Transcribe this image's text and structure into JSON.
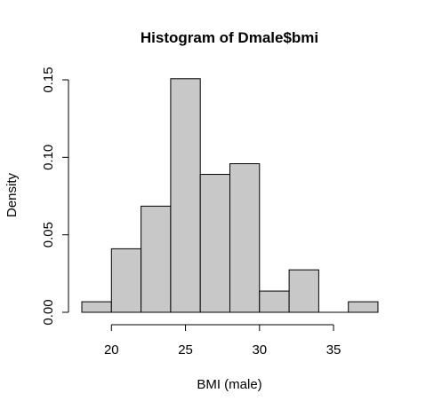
{
  "chart_data": {
    "type": "bar",
    "title": "Histogram of Dmale$bmi",
    "xlabel": "BMI (male)",
    "ylabel": "Density",
    "bins": [
      {
        "start": 18,
        "end": 20,
        "value": 0.0068
      },
      {
        "start": 20,
        "end": 22,
        "value": 0.041
      },
      {
        "start": 22,
        "end": 24,
        "value": 0.0685
      },
      {
        "start": 24,
        "end": 26,
        "value": 0.1507
      },
      {
        "start": 26,
        "end": 28,
        "value": 0.089
      },
      {
        "start": 28,
        "end": 30,
        "value": 0.0959
      },
      {
        "start": 30,
        "end": 32,
        "value": 0.0137
      },
      {
        "start": 32,
        "end": 34,
        "value": 0.0274
      },
      {
        "start": 34,
        "end": 36,
        "value": 0.0
      },
      {
        "start": 36,
        "end": 38,
        "value": 0.0068
      }
    ],
    "xlim": [
      18,
      38
    ],
    "ylim": [
      0,
      0.15
    ],
    "x_ticks": [
      20,
      25,
      30,
      35
    ],
    "y_ticks": [
      0.0,
      0.05,
      0.1,
      0.15
    ],
    "x_tick_labels": [
      "20",
      "25",
      "30",
      "35"
    ],
    "y_tick_labels": [
      "0.00",
      "0.05",
      "0.10",
      "0.15"
    ],
    "bar_fill": "#c8c8c8",
    "grid": false,
    "legend": "none"
  }
}
